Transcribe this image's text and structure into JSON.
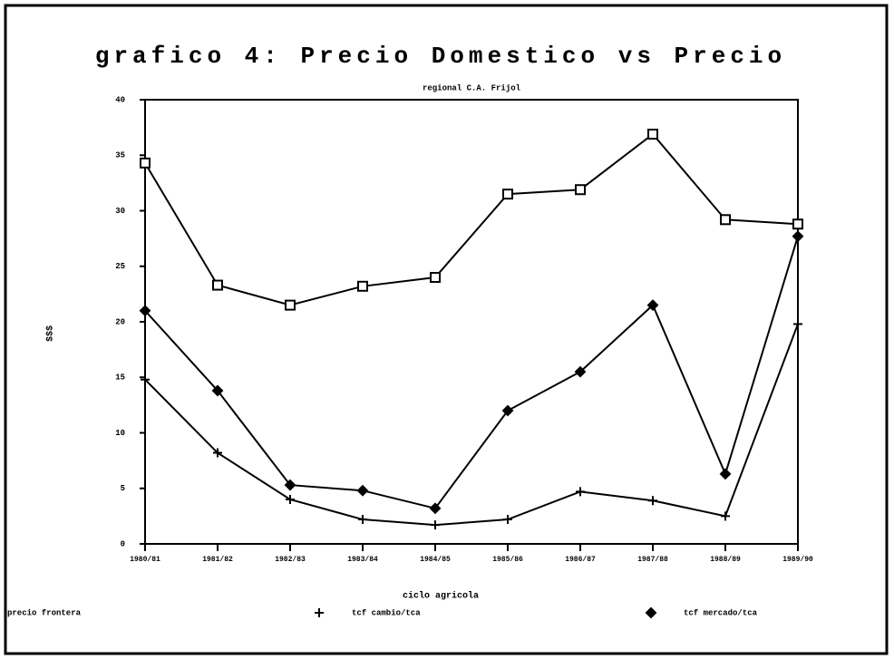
{
  "chart_data": {
    "type": "line",
    "title": "grafico 4: Precio Domestico vs Precio",
    "subtitle": "regional C.A. Frijol",
    "y_label": "$$$",
    "x_label": "ciclo agricola",
    "categories": [
      "1980/81",
      "1981/82",
      "1982/83",
      "1983/84",
      "1984/85",
      "1985/86",
      "1986/87",
      "1987/88",
      "1988/89",
      "1989/90"
    ],
    "series": [
      {
        "name": "precio frontera",
        "color": "#000000",
        "marker": "square",
        "values": [
          34.3,
          23.3,
          21.5,
          23.2,
          24.0,
          31.5,
          31.9,
          36.9,
          29.2,
          28.8
        ]
      },
      {
        "name": "tcf cambio/tca",
        "color": "#000000",
        "marker": "plus",
        "values": [
          14.8,
          8.2,
          4.0,
          2.2,
          1.7,
          2.2,
          4.7,
          3.9,
          2.5,
          19.8
        ]
      },
      {
        "name": "tcf mercado/tca",
        "color": "#000000",
        "marker": "diamond",
        "values": [
          21.0,
          13.8,
          5.3,
          4.8,
          3.2,
          12.0,
          15.5,
          21.5,
          6.3,
          27.7
        ]
      }
    ],
    "ylim": [
      0,
      40
    ],
    "yticks": [
      0,
      5,
      10,
      15,
      20,
      25,
      30,
      35,
      40
    ],
    "legend": "bottom"
  }
}
